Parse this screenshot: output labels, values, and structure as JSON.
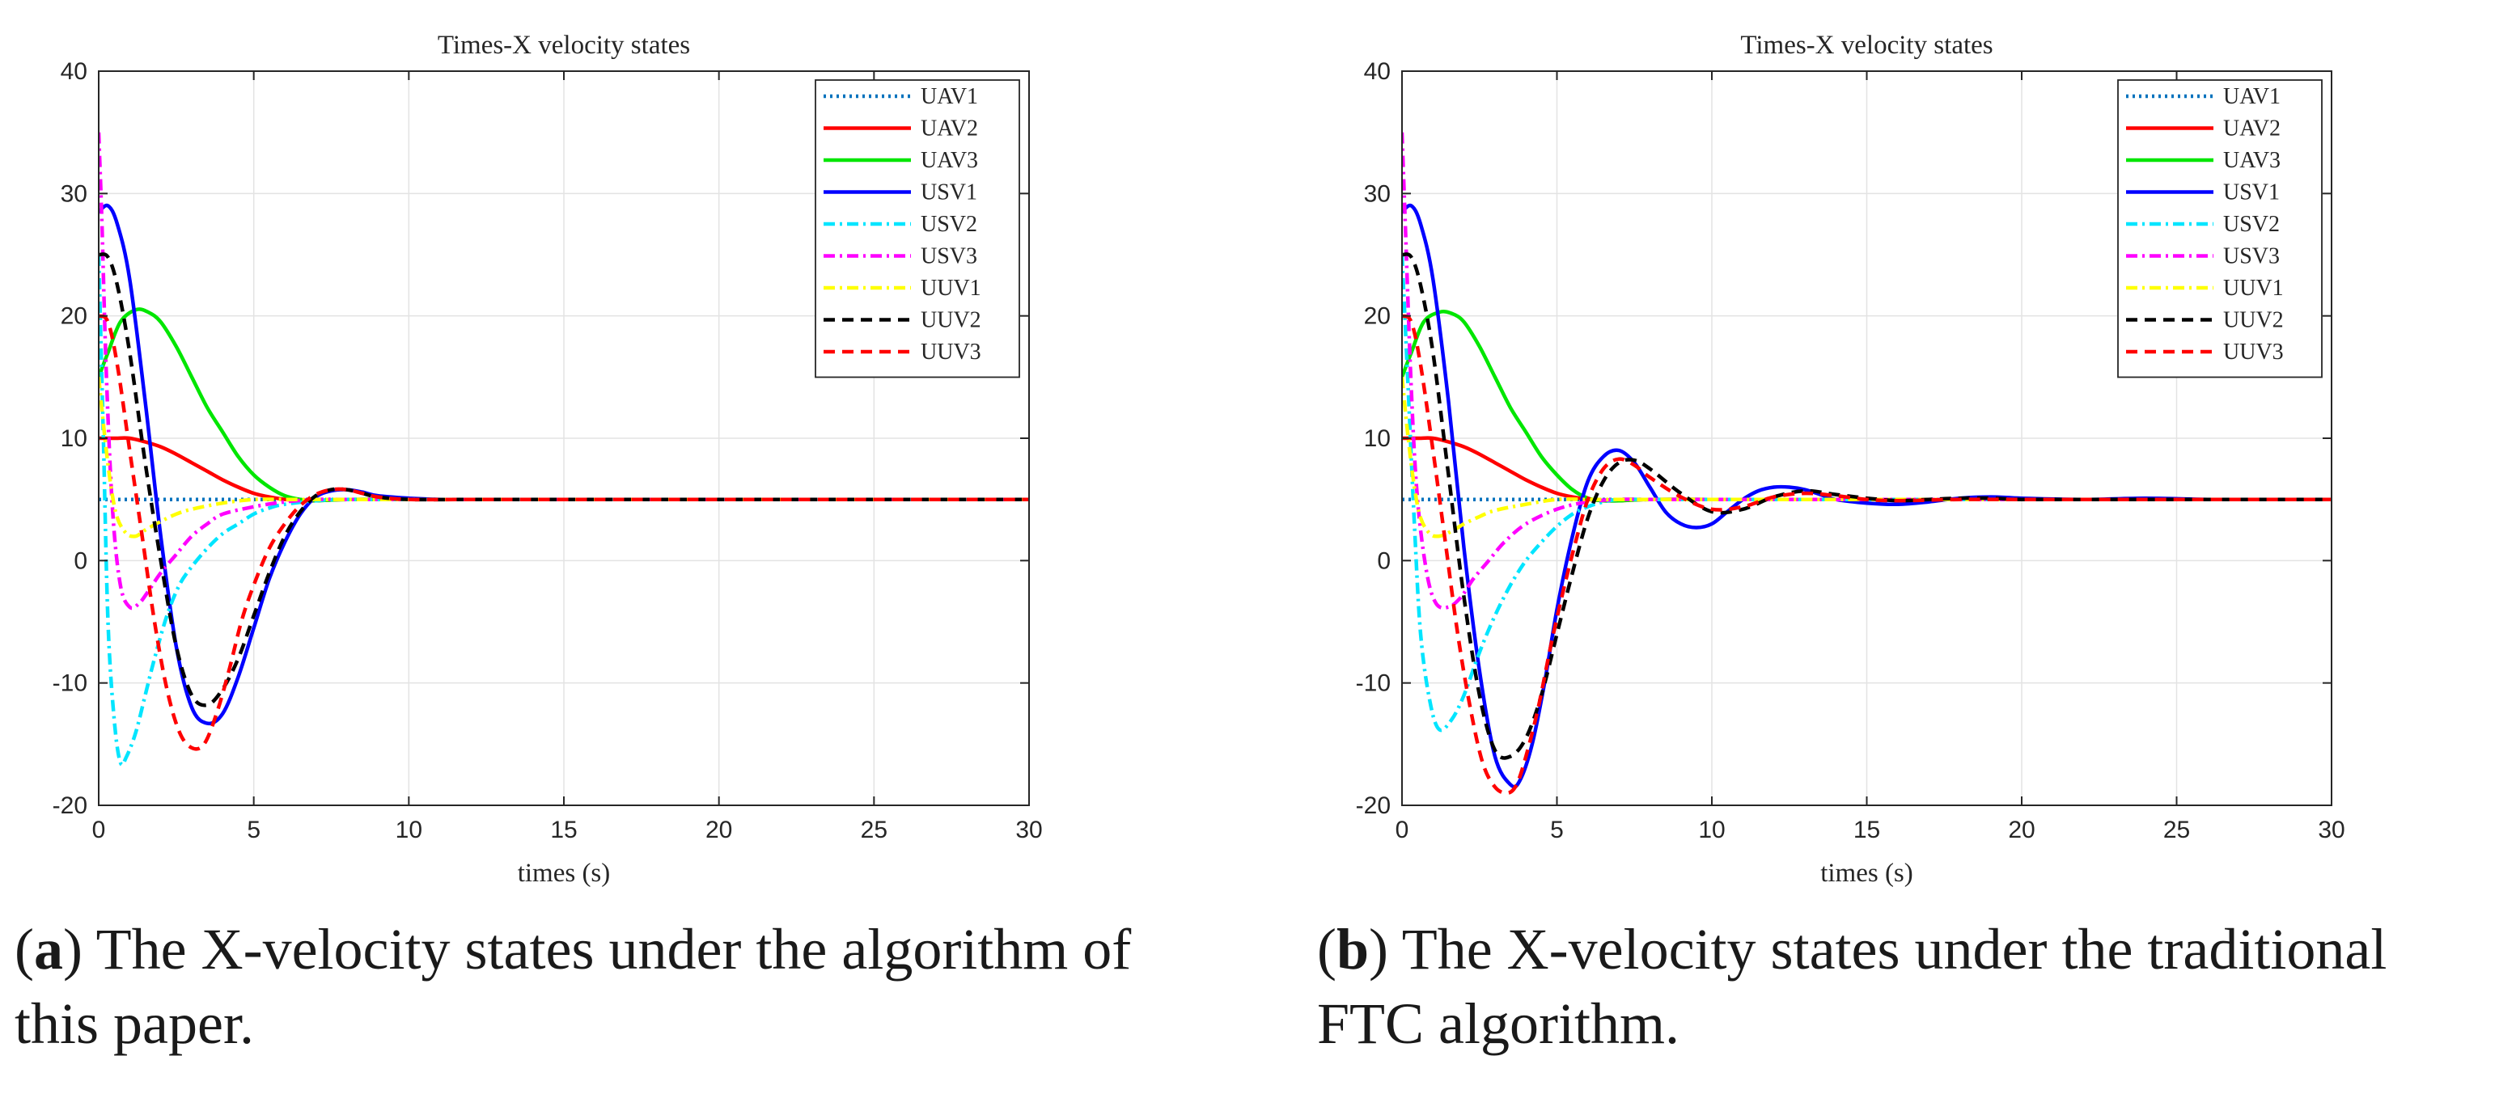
{
  "chart_data": [
    {
      "type": "line",
      "title": "Times-X velocity states",
      "xlabel": "times (s)",
      "ylabel": "",
      "xlim": [
        0,
        30
      ],
      "ylim": [
        -20,
        40
      ],
      "xticks": [
        0,
        5,
        10,
        15,
        20,
        25,
        30
      ],
      "yticks": [
        -20,
        -10,
        0,
        10,
        20,
        30,
        40
      ],
      "grid": true,
      "legend_position": "top-right",
      "caption": {
        "label": "a",
        "text": " The X-velocity states under the algorithm of this paper."
      },
      "series": [
        {
          "name": "UAV1",
          "color": "#0072BD",
          "dash": "dotted",
          "x": [
            0,
            30
          ],
          "y": [
            5,
            5
          ]
        },
        {
          "name": "UAV2",
          "color": "#FF0000",
          "dash": "solid",
          "x": [
            0,
            0.5,
            1,
            1.5,
            2,
            2.5,
            3,
            3.5,
            4,
            4.5,
            5,
            5.5,
            6,
            6.5,
            7,
            8,
            10,
            12,
            15,
            20,
            30
          ],
          "y": [
            10,
            10,
            10,
            9.7,
            9.3,
            8.7,
            8,
            7.3,
            6.6,
            6,
            5.5,
            5.2,
            5.0,
            4.9,
            4.9,
            5.0,
            5.0,
            5,
            5,
            5,
            5
          ]
        },
        {
          "name": "UAV3",
          "color": "#00E600",
          "dash": "solid",
          "x": [
            0,
            0.3,
            0.7,
            1.2,
            1.6,
            2,
            2.5,
            3,
            3.5,
            4,
            4.5,
            5,
            5.5,
            6,
            6.5,
            7,
            8,
            10,
            12,
            15,
            20,
            30
          ],
          "y": [
            15,
            17,
            19.5,
            20.5,
            20.3,
            19.5,
            17.5,
            15,
            12.5,
            10.5,
            8.5,
            7,
            6,
            5.3,
            5.0,
            4.9,
            5.0,
            5,
            5,
            5,
            5,
            5
          ]
        },
        {
          "name": "USV1",
          "color": "#0000FF",
          "dash": "solid",
          "x": [
            0,
            0.3,
            0.6,
            1,
            1.5,
            2,
            2.5,
            3,
            3.5,
            4,
            4.5,
            5,
            5.5,
            6,
            6.5,
            7,
            7.5,
            8,
            8.5,
            9,
            10,
            11,
            12,
            15,
            20,
            30
          ],
          "y": [
            28.5,
            29,
            27.5,
            23,
            13,
            2,
            -7,
            -12,
            -13.3,
            -12.5,
            -9.5,
            -5.5,
            -1.5,
            1.5,
            3.8,
            5.2,
            5.7,
            5.8,
            5.6,
            5.3,
            5.1,
            5.0,
            5,
            5,
            5,
            5
          ]
        },
        {
          "name": "USV2",
          "color": "#00E5FF",
          "dash": "dashdot",
          "x": [
            0,
            0.15,
            0.3,
            0.5,
            0.7,
            0.9,
            1.2,
            1.5,
            1.8,
            2.2,
            2.6,
            3,
            3.5,
            4,
            4.5,
            5,
            5.5,
            6,
            7,
            8,
            10,
            15,
            20,
            30
          ],
          "y": [
            25,
            10,
            -5,
            -13,
            -16.5,
            -16,
            -14,
            -11,
            -8,
            -4.5,
            -2,
            -0.5,
            1,
            2.2,
            3,
            3.8,
            4.3,
            4.6,
            4.9,
            5,
            5,
            5,
            5,
            5
          ]
        },
        {
          "name": "USV3",
          "color": "#FF00FF",
          "dash": "dashdot",
          "x": [
            0,
            0.1,
            0.25,
            0.45,
            0.7,
            1,
            1.3,
            1.6,
            2,
            2.5,
            3,
            3.5,
            4,
            5,
            6,
            7,
            8,
            10,
            15,
            20,
            30
          ],
          "y": [
            35,
            28,
            15,
            4,
            -2,
            -3.8,
            -3.5,
            -2.5,
            -1,
            0.5,
            2,
            3,
            3.8,
            4.4,
            4.8,
            5,
            5,
            5,
            5,
            5,
            5
          ]
        },
        {
          "name": "UUV1",
          "color": "#FFFF00",
          "dash": "dashdot",
          "x": [
            0,
            0.2,
            0.4,
            0.6,
            0.9,
            1.2,
            1.5,
            2,
            2.5,
            3,
            4,
            5,
            6,
            8,
            10,
            15,
            20,
            30
          ],
          "y": [
            15,
            10,
            6,
            3.5,
            2.2,
            2.0,
            2.5,
            3.2,
            3.8,
            4.2,
            4.7,
            5,
            5,
            5,
            5,
            5,
            5,
            5
          ]
        },
        {
          "name": "UUV2",
          "color": "#000000",
          "dash": "dashed",
          "x": [
            0,
            0.3,
            0.6,
            1,
            1.5,
            2,
            2.5,
            3,
            3.5,
            4,
            4.5,
            5,
            5.5,
            6,
            6.5,
            7,
            7.5,
            8,
            8.5,
            9,
            10,
            12,
            15,
            20,
            30
          ],
          "y": [
            25,
            24.8,
            22.5,
            17,
            8,
            0,
            -7,
            -11,
            -11.8,
            -10.5,
            -8,
            -4.5,
            -1,
            2,
            4,
            5.3,
            5.8,
            5.8,
            5.5,
            5.2,
            5.0,
            5,
            5,
            5,
            5
          ]
        },
        {
          "name": "UUV3",
          "color": "#FF0000",
          "dash": "dashed",
          "x": [
            0,
            0.3,
            0.6,
            1,
            1.4,
            1.8,
            2.2,
            2.6,
            3,
            3.4,
            3.8,
            4.2,
            4.6,
            5,
            5.5,
            6,
            6.5,
            7,
            7.5,
            8,
            8.5,
            9,
            10,
            12,
            15,
            20,
            30
          ],
          "y": [
            20,
            19.5,
            16,
            9,
            2,
            -5,
            -10.5,
            -14,
            -15.3,
            -15,
            -12.5,
            -9,
            -5,
            -2,
            1,
            3,
            4.5,
            5.4,
            5.8,
            5.8,
            5.5,
            5.2,
            5.0,
            5,
            5,
            5,
            5
          ]
        }
      ]
    },
    {
      "type": "line",
      "title": "Times-X velocity states",
      "xlabel": "times (s)",
      "ylabel": "",
      "xlim": [
        0,
        30
      ],
      "ylim": [
        -20,
        40
      ],
      "xticks": [
        0,
        5,
        10,
        15,
        20,
        25,
        30
      ],
      "yticks": [
        -20,
        -10,
        0,
        10,
        20,
        30,
        40
      ],
      "grid": true,
      "legend_position": "top-right",
      "caption": {
        "label": "b",
        "text": " The X-velocity states under the traditional FTC algorithm."
      },
      "series": [
        {
          "name": "UAV1",
          "color": "#0072BD",
          "dash": "dotted",
          "x": [
            0,
            30
          ],
          "y": [
            5,
            5
          ]
        },
        {
          "name": "UAV2",
          "color": "#FF0000",
          "dash": "solid",
          "x": [
            0,
            0.5,
            1,
            1.5,
            2,
            2.5,
            3,
            3.5,
            4,
            4.5,
            5,
            5.5,
            6,
            6.5,
            7,
            8,
            10,
            12,
            15,
            20,
            30
          ],
          "y": [
            10,
            10,
            10,
            9.7,
            9.3,
            8.7,
            8,
            7.3,
            6.6,
            6,
            5.5,
            5.2,
            5.0,
            4.9,
            4.9,
            5.0,
            5.0,
            5,
            5,
            5,
            5
          ]
        },
        {
          "name": "UAV3",
          "color": "#00E600",
          "dash": "solid",
          "x": [
            0,
            0.3,
            0.7,
            1.2,
            1.6,
            2,
            2.5,
            3,
            3.5,
            4,
            4.5,
            5,
            5.5,
            6,
            6.5,
            7,
            8,
            10,
            12,
            15,
            20,
            30
          ],
          "y": [
            15,
            17,
            19.5,
            20.3,
            20.2,
            19.5,
            17.5,
            15,
            12.5,
            10.5,
            8.5,
            7,
            5.8,
            5.1,
            4.9,
            4.9,
            5.0,
            5,
            5,
            5,
            5,
            5
          ]
        },
        {
          "name": "USV1",
          "color": "#0000FF",
          "dash": "solid",
          "x": [
            0,
            0.3,
            0.6,
            1,
            1.5,
            2,
            2.5,
            3,
            3.5,
            3.8,
            4.2,
            4.6,
            5,
            5.5,
            6,
            6.5,
            7,
            7.5,
            8,
            8.5,
            9,
            9.5,
            10,
            10.5,
            11,
            11.5,
            12,
            12.5,
            13,
            13.5,
            14,
            15,
            16,
            17,
            18,
            19,
            20,
            22,
            24,
            26,
            28,
            30
          ],
          "y": [
            28.5,
            29,
            27.5,
            23,
            13,
            1,
            -9,
            -16,
            -18.3,
            -18,
            -15,
            -10,
            -4,
            2,
            6.5,
            8.5,
            9,
            8,
            6,
            4,
            3,
            2.7,
            3,
            4,
            5,
            5.7,
            6,
            6,
            5.8,
            5.4,
            5.0,
            4.7,
            4.6,
            4.8,
            5.1,
            5.2,
            5.1,
            5.0,
            5.1,
            5.0,
            5.0,
            5.0
          ]
        },
        {
          "name": "USV2",
          "color": "#00E5FF",
          "dash": "dashdot",
          "x": [
            0,
            0.2,
            0.4,
            0.6,
            0.9,
            1.2,
            1.6,
            2,
            2.5,
            3,
            3.5,
            4,
            4.5,
            5,
            5.5,
            6,
            6.5,
            7,
            8,
            10,
            15,
            20,
            30
          ],
          "y": [
            25,
            14,
            3,
            -6,
            -11.5,
            -13.8,
            -13,
            -11,
            -7.5,
            -4.5,
            -2,
            0,
            1.5,
            2.8,
            3.8,
            4.4,
            4.8,
            5,
            5,
            5,
            5,
            5,
            5
          ]
        },
        {
          "name": "USV3",
          "color": "#FF00FF",
          "dash": "dashdot",
          "x": [
            0,
            0.1,
            0.3,
            0.5,
            0.8,
            1.1,
            1.5,
            1.9,
            2.3,
            2.8,
            3.3,
            4,
            5,
            6,
            7,
            8,
            10,
            15,
            20,
            30
          ],
          "y": [
            35,
            28,
            14,
            5,
            -1,
            -3.5,
            -3.8,
            -3,
            -1.5,
            0,
            1.5,
            3,
            4.2,
            4.8,
            5,
            5,
            5,
            5,
            5,
            5
          ]
        },
        {
          "name": "UUV1",
          "color": "#FFFF00",
          "dash": "dashdot",
          "x": [
            0,
            0.2,
            0.4,
            0.6,
            0.9,
            1.2,
            1.6,
            2,
            2.5,
            3,
            4,
            5,
            6,
            8,
            10,
            15,
            20,
            30
          ],
          "y": [
            15,
            10,
            6,
            3.5,
            2.2,
            2.0,
            2.4,
            3.0,
            3.6,
            4.1,
            4.6,
            5,
            5,
            5,
            5,
            5,
            5,
            5
          ]
        },
        {
          "name": "UUV2",
          "color": "#000000",
          "dash": "dashed",
          "x": [
            0,
            0.3,
            0.6,
            1,
            1.5,
            2,
            2.5,
            3,
            3.5,
            4,
            4.5,
            5,
            5.5,
            6,
            6.5,
            7,
            7.5,
            8,
            9,
            10,
            11,
            12,
            13,
            14,
            15,
            16,
            17,
            18,
            19,
            20,
            22,
            24,
            26,
            28,
            30
          ],
          "y": [
            25,
            24.8,
            22.5,
            17,
            7,
            -3,
            -11,
            -15.5,
            -16,
            -14.5,
            -11,
            -6,
            -1,
            3.5,
            6.5,
            8,
            8.2,
            7.5,
            5.5,
            4,
            4.2,
            5.2,
            5.7,
            5.4,
            5.1,
            4.9,
            5.0,
            5.1,
            5.1,
            5.0,
            5.0,
            5.0,
            5.0,
            5.0,
            5.0
          ]
        },
        {
          "name": "UUV3",
          "color": "#FF0000",
          "dash": "dashed",
          "x": [
            0,
            0.3,
            0.6,
            1,
            1.4,
            1.8,
            2.2,
            2.6,
            3,
            3.4,
            3.7,
            4,
            4.4,
            4.8,
            5.2,
            5.6,
            6,
            6.5,
            7,
            7.5,
            8,
            9,
            10,
            11,
            12,
            13,
            14,
            15,
            16,
            18,
            20,
            22,
            24,
            26,
            28,
            30
          ],
          "y": [
            20,
            19.5,
            16,
            9,
            1.5,
            -6,
            -12,
            -16.5,
            -18.5,
            -19,
            -18.3,
            -16,
            -12,
            -7,
            -2.5,
            1.5,
            5,
            7.5,
            8.3,
            7.8,
            6.8,
            5.2,
            4.2,
            4.4,
            5.2,
            5.5,
            5.3,
            5.0,
            4.9,
            5.0,
            5.0,
            5.0,
            5.0,
            5.0,
            5.0,
            5.0
          ]
        }
      ]
    }
  ]
}
